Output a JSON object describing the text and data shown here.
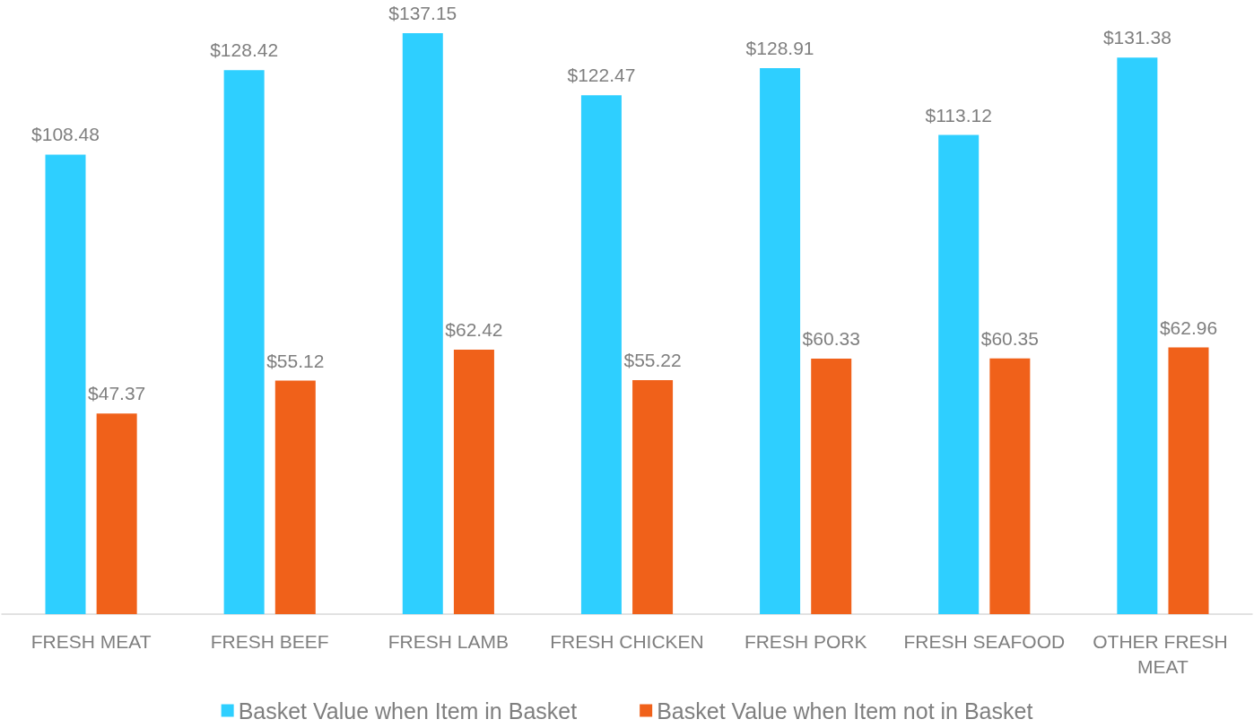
{
  "chart_data": {
    "type": "bar",
    "categories": [
      "FRESH MEAT",
      "FRESH BEEF",
      "FRESH LAMB",
      "FRESH CHICKEN",
      "FRESH PORK",
      "FRESH SEAFOOD",
      "OTHER FRESH MEAT"
    ],
    "series": [
      {
        "name": "Basket Value when Item in Basket",
        "color": "#2ecfff",
        "values": [
          108.48,
          128.42,
          137.15,
          122.47,
          128.91,
          113.12,
          131.38
        ],
        "value_labels": [
          "$108.48",
          "$128.42",
          "$137.15",
          "$122.47",
          "$128.91",
          "$113.12",
          "$131.38"
        ]
      },
      {
        "name": "Basket Value when Item not in Basket",
        "color": "#f0611a",
        "values": [
          47.37,
          55.12,
          62.42,
          55.22,
          60.33,
          60.35,
          62.96
        ],
        "value_labels": [
          "$47.37",
          "$55.12",
          "$62.42",
          "$55.22",
          "$60.33",
          "$60.35",
          "$62.96"
        ]
      }
    ],
    "grid": false,
    "legend": "bottom"
  }
}
